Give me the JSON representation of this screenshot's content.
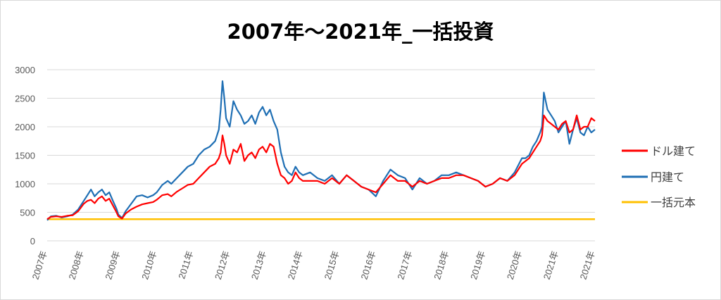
{
  "chart_data": {
    "type": "line",
    "title": "2007年～2021年_一括投資",
    "xlabel": "",
    "ylabel": "",
    "ylim": [
      0,
      3000
    ],
    "yticks": [
      0,
      500,
      1000,
      1500,
      2000,
      2500,
      3000
    ],
    "x_tick_labels": [
      "2007年",
      "2008年",
      "2009年",
      "2010年",
      "2011年",
      "2012年",
      "2013年",
      "2014年",
      "2015年",
      "2016年",
      "2017年",
      "2018年",
      "2019年",
      "2020年",
      "2021年",
      "2021年"
    ],
    "x_tick_years": [
      2007,
      2008,
      2009,
      2010,
      2011,
      2012,
      2013,
      2014,
      2015,
      2016,
      2017,
      2018,
      2019,
      2020,
      2021,
      2022
    ],
    "grid": true,
    "legend": "right",
    "series": [
      {
        "name": "ドル建て",
        "color": "#ff0000",
        "x": [
          2007.0,
          2007.1,
          2007.25,
          2007.4,
          2007.55,
          2007.7,
          2007.85,
          2008.0,
          2008.1,
          2008.2,
          2008.3,
          2008.4,
          2008.5,
          2008.6,
          2008.7,
          2008.8,
          2008.9,
          2008.95,
          2009.05,
          2009.15,
          2009.3,
          2009.45,
          2009.6,
          2009.75,
          2009.9,
          2010.0,
          2010.15,
          2010.3,
          2010.4,
          2010.55,
          2010.7,
          2010.85,
          2011.0,
          2011.15,
          2011.3,
          2011.45,
          2011.6,
          2011.7,
          2011.75,
          2011.8,
          2011.85,
          2011.9,
          2012.0,
          2012.1,
          2012.2,
          2012.3,
          2012.4,
          2012.5,
          2012.6,
          2012.7,
          2012.8,
          2012.9,
          2013.0,
          2013.1,
          2013.2,
          2013.3,
          2013.4,
          2013.5,
          2013.6,
          2013.7,
          2013.8,
          2013.9,
          2014.0,
          2014.2,
          2014.4,
          2014.6,
          2014.8,
          2015.0,
          2015.2,
          2015.4,
          2015.6,
          2015.8,
          2016.0,
          2016.2,
          2016.4,
          2016.6,
          2016.8,
          2017.0,
          2017.2,
          2017.4,
          2017.6,
          2017.8,
          2018.0,
          2018.2,
          2018.4,
          2018.6,
          2018.8,
          2019.0,
          2019.2,
          2019.4,
          2019.6,
          2019.8,
          2020.0,
          2020.1,
          2020.2,
          2020.3,
          2020.4,
          2020.5,
          2020.55,
          2020.6,
          2020.7,
          2020.8,
          2020.9,
          2021.0,
          2021.1,
          2021.2,
          2021.3,
          2021.4,
          2021.5,
          2021.6,
          2021.7,
          2021.8,
          2021.9,
          2022.0
        ],
        "values": [
          380,
          420,
          430,
          420,
          440,
          450,
          520,
          650,
          700,
          720,
          660,
          740,
          780,
          700,
          740,
          620,
          500,
          430,
          390,
          480,
          550,
          600,
          640,
          660,
          680,
          720,
          800,
          820,
          780,
          860,
          920,
          980,
          1000,
          1100,
          1200,
          1300,
          1350,
          1450,
          1550,
          1850,
          1700,
          1500,
          1350,
          1600,
          1550,
          1700,
          1400,
          1500,
          1550,
          1450,
          1600,
          1650,
          1550,
          1700,
          1650,
          1350,
          1150,
          1100,
          1000,
          1050,
          1200,
          1100,
          1050,
          1050,
          1050,
          1000,
          1100,
          1000,
          1150,
          1050,
          950,
          900,
          850,
          1000,
          1150,
          1050,
          1050,
          950,
          1050,
          1000,
          1050,
          1100,
          1100,
          1150,
          1150,
          1100,
          1050,
          950,
          1000,
          1100,
          1050,
          1150,
          1350,
          1400,
          1450,
          1550,
          1650,
          1750,
          1850,
          2200,
          2100,
          2050,
          2000,
          1950,
          2050,
          2100,
          1900,
          1950,
          2200,
          1950,
          2000,
          2000,
          2150,
          2100
        ]
      },
      {
        "name": "円建て",
        "color": "#1f6fb4",
        "x": [
          2007.0,
          2007.1,
          2007.25,
          2007.4,
          2007.55,
          2007.7,
          2007.85,
          2008.0,
          2008.1,
          2008.2,
          2008.3,
          2008.4,
          2008.5,
          2008.6,
          2008.7,
          2008.8,
          2008.9,
          2008.95,
          2009.05,
          2009.15,
          2009.3,
          2009.45,
          2009.6,
          2009.75,
          2009.9,
          2010.0,
          2010.15,
          2010.3,
          2010.4,
          2010.55,
          2010.7,
          2010.85,
          2011.0,
          2011.15,
          2011.3,
          2011.45,
          2011.6,
          2011.7,
          2011.75,
          2011.8,
          2011.85,
          2011.9,
          2012.0,
          2012.1,
          2012.2,
          2012.3,
          2012.4,
          2012.5,
          2012.6,
          2012.7,
          2012.8,
          2012.9,
          2013.0,
          2013.1,
          2013.2,
          2013.3,
          2013.4,
          2013.5,
          2013.6,
          2013.7,
          2013.8,
          2013.9,
          2014.0,
          2014.2,
          2014.4,
          2014.6,
          2014.8,
          2015.0,
          2015.2,
          2015.4,
          2015.6,
          2015.8,
          2016.0,
          2016.2,
          2016.4,
          2016.6,
          2016.8,
          2017.0,
          2017.2,
          2017.4,
          2017.6,
          2017.8,
          2018.0,
          2018.2,
          2018.4,
          2018.6,
          2018.8,
          2019.0,
          2019.2,
          2019.4,
          2019.6,
          2019.8,
          2020.0,
          2020.1,
          2020.2,
          2020.3,
          2020.4,
          2020.5,
          2020.55,
          2020.6,
          2020.7,
          2020.8,
          2020.9,
          2021.0,
          2021.1,
          2021.2,
          2021.3,
          2021.4,
          2021.5,
          2021.6,
          2021.7,
          2021.8,
          2021.9,
          2022.0
        ],
        "values": [
          360,
          430,
          440,
          410,
          430,
          460,
          550,
          700,
          800,
          900,
          780,
          850,
          900,
          800,
          850,
          700,
          560,
          460,
          400,
          520,
          650,
          780,
          800,
          760,
          800,
          850,
          980,
          1050,
          1000,
          1100,
          1200,
          1300,
          1350,
          1500,
          1600,
          1650,
          1750,
          1950,
          2300,
          2800,
          2500,
          2150,
          2000,
          2450,
          2300,
          2200,
          2050,
          2100,
          2200,
          2050,
          2250,
          2350,
          2200,
          2300,
          2100,
          1950,
          1550,
          1300,
          1200,
          1150,
          1300,
          1200,
          1150,
          1200,
          1100,
          1050,
          1150,
          1000,
          1150,
          1050,
          950,
          900,
          780,
          1050,
          1250,
          1150,
          1100,
          900,
          1100,
          1000,
          1050,
          1150,
          1150,
          1200,
          1150,
          1100,
          1050,
          950,
          1000,
          1100,
          1050,
          1200,
          1450,
          1450,
          1500,
          1650,
          1750,
          1900,
          2000,
          2600,
          2300,
          2200,
          2100,
          1900,
          2000,
          2100,
          1700,
          1950,
          2150,
          1900,
          1850,
          2000,
          1900,
          1950
        ]
      },
      {
        "name": "一括元本",
        "color": "#ffc000",
        "x": [
          2007.0,
          2022.0
        ],
        "values": [
          380,
          380
        ]
      }
    ]
  }
}
